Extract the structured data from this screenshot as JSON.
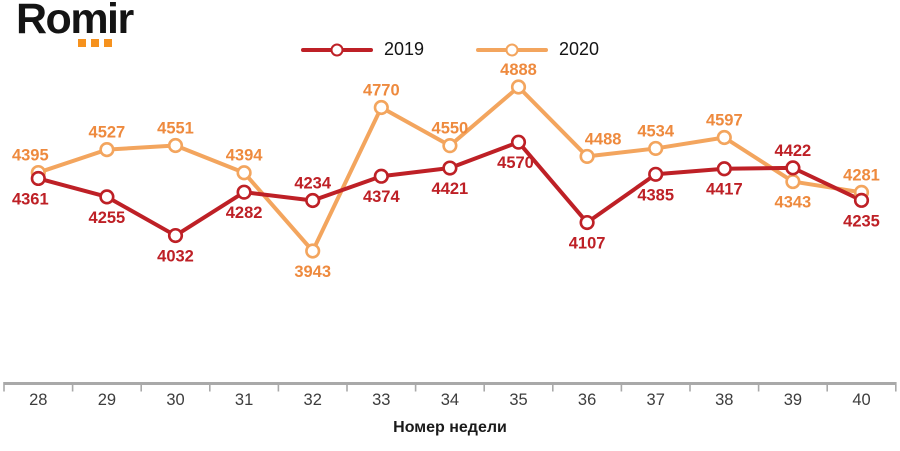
{
  "logo": {
    "text": "Romir",
    "dots_color": "#f6921e"
  },
  "chart_data": {
    "type": "line",
    "title": "",
    "xlabel": "Номер недели",
    "ylabel": "",
    "x": [
      28,
      29,
      30,
      31,
      32,
      33,
      34,
      35,
      36,
      37,
      38,
      39,
      40
    ],
    "ylim": [
      3943,
      4888
    ],
    "grid": false,
    "legend_position": "top-center",
    "axis_color": "#a9a9a9",
    "tick_label_color": "#3d3d3d",
    "series": [
      {
        "name": "2019",
        "color": "#be2026",
        "label_color": "#be2026",
        "values": [
          4361,
          4255,
          4032,
          4282,
          4234,
          4374,
          4421,
          4570,
          4107,
          4385,
          4417,
          4422,
          4235
        ],
        "label_positions": [
          "below",
          "below",
          "below",
          "below",
          "above",
          "below",
          "below",
          "below",
          "below",
          "below",
          "below",
          "above",
          "below"
        ],
        "label_dx": [
          -8,
          0,
          0,
          0,
          0,
          0,
          0,
          -3,
          0,
          0,
          0,
          0,
          0
        ]
      },
      {
        "name": "2020",
        "color": "#f3a55e",
        "label_color": "#ee8a3e",
        "values": [
          4395,
          4527,
          4551,
          4394,
          3943,
          4770,
          4550,
          4888,
          4488,
          4534,
          4597,
          4343,
          4281
        ],
        "label_positions": [
          "above",
          "above",
          "above",
          "above",
          "below",
          "above",
          "above",
          "above",
          "above",
          "above",
          "above",
          "below",
          "above"
        ],
        "label_dx": [
          -8,
          0,
          0,
          0,
          0,
          0,
          0,
          0,
          16,
          0,
          0,
          0,
          0
        ]
      }
    ]
  }
}
